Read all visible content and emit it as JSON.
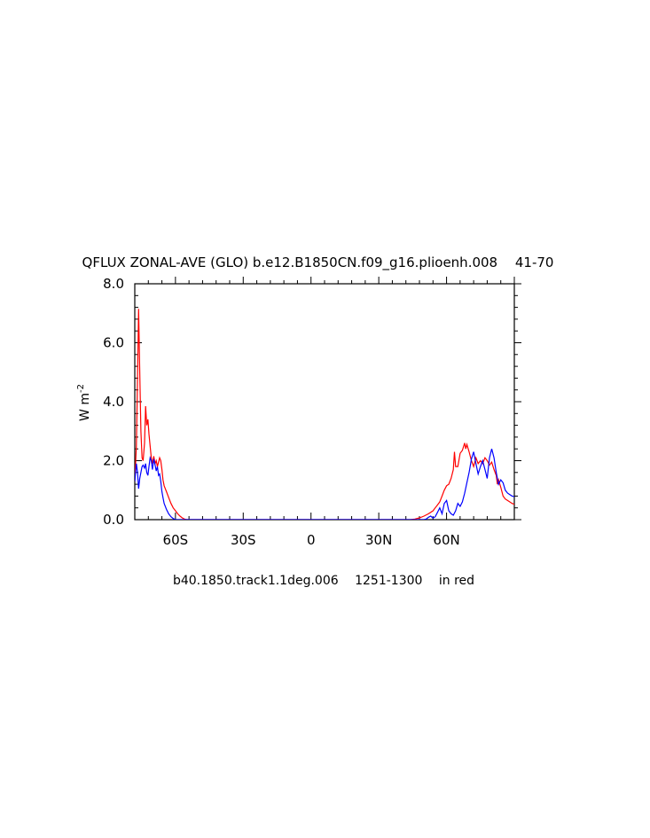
{
  "chart_data": {
    "type": "line",
    "title": "QFLUX ZONAL-AVE (GLO) b.e12.B1850CN.f09_g16.plioenh.008 　41-70　",
    "subtitle": "b40.1850.track1.1deg.006 　1251-1300　 in red",
    "ylabel_base": "W m",
    "ylabel_exp": "-2",
    "xlim": [
      -78,
      90
    ],
    "ylim": [
      0,
      8
    ],
    "x_ticks": [
      {
        "value": -60,
        "label": "60S"
      },
      {
        "value": -30,
        "label": "30S"
      },
      {
        "value": 0,
        "label": "0"
      },
      {
        "value": 30,
        "label": "30N"
      },
      {
        "value": 60,
        "label": "60N"
      }
    ],
    "y_ticks": [
      {
        "value": 0,
        "label": "0.0"
      },
      {
        "value": 2,
        "label": "2.0"
      },
      {
        "value": 4,
        "label": "4.0"
      },
      {
        "value": 6,
        "label": "6.0"
      },
      {
        "value": 8,
        "label": "8.0"
      }
    ],
    "series": [
      {
        "color": "#ff0000",
        "points": [
          [
            -78,
            1.3
          ],
          [
            -77.3,
            2.5
          ],
          [
            -76.8,
            4.8
          ],
          [
            -76.3,
            7.15
          ],
          [
            -75.8,
            5.0
          ],
          [
            -75.3,
            3.0
          ],
          [
            -74.8,
            2.1
          ],
          [
            -74.3,
            2.0
          ],
          [
            -73.7,
            2.6
          ],
          [
            -73.2,
            3.85
          ],
          [
            -72.7,
            3.2
          ],
          [
            -72.2,
            3.4
          ],
          [
            -71.7,
            2.9
          ],
          [
            -71.2,
            2.5
          ],
          [
            -70.7,
            2.1
          ],
          [
            -70.2,
            1.9
          ],
          [
            -69.6,
            2.15
          ],
          [
            -69.0,
            1.9
          ],
          [
            -68.5,
            2.0
          ],
          [
            -68.0,
            1.8
          ],
          [
            -67.5,
            1.95
          ],
          [
            -67.0,
            2.1
          ],
          [
            -66.5,
            2.0
          ],
          [
            -66.0,
            1.7
          ],
          [
            -65.5,
            1.35
          ],
          [
            -65.0,
            1.15
          ],
          [
            -64.0,
            0.95
          ],
          [
            -63.0,
            0.75
          ],
          [
            -62.0,
            0.55
          ],
          [
            -61.0,
            0.4
          ],
          [
            -60.0,
            0.3
          ],
          [
            -59.0,
            0.2
          ],
          [
            -58.0,
            0.12
          ],
          [
            -57.0,
            0.06
          ],
          [
            -56.0,
            0.02
          ],
          [
            -55.0,
            0.0
          ],
          [
            -50,
            0.0
          ],
          [
            0,
            0.0
          ],
          [
            44,
            0.0
          ],
          [
            46,
            0.02
          ],
          [
            48,
            0.06
          ],
          [
            50,
            0.12
          ],
          [
            52,
            0.2
          ],
          [
            54,
            0.3
          ],
          [
            55,
            0.4
          ],
          [
            56,
            0.5
          ],
          [
            57,
            0.6
          ],
          [
            58,
            0.8
          ],
          [
            59,
            1.0
          ],
          [
            60,
            1.15
          ],
          [
            61,
            1.2
          ],
          [
            62,
            1.4
          ],
          [
            63,
            1.7
          ],
          [
            63.5,
            2.3
          ],
          [
            64,
            1.8
          ],
          [
            65,
            1.8
          ],
          [
            66,
            2.25
          ],
          [
            67,
            2.35
          ],
          [
            68,
            2.6
          ],
          [
            68.5,
            2.4
          ],
          [
            69,
            2.55
          ],
          [
            70,
            2.3
          ],
          [
            71,
            2.0
          ],
          [
            72,
            1.8
          ],
          [
            73,
            2.1
          ],
          [
            74,
            1.9
          ],
          [
            75,
            2.0
          ],
          [
            76,
            1.9
          ],
          [
            77,
            2.1
          ],
          [
            78,
            2.0
          ],
          [
            79,
            1.85
          ],
          [
            80,
            1.95
          ],
          [
            81,
            1.7
          ],
          [
            82,
            1.5
          ],
          [
            82.5,
            1.2
          ],
          [
            83,
            1.35
          ],
          [
            84,
            1.1
          ],
          [
            85,
            0.8
          ],
          [
            86,
            0.7
          ],
          [
            87,
            0.65
          ],
          [
            88,
            0.6
          ],
          [
            89,
            0.55
          ],
          [
            90,
            0.52
          ]
        ]
      },
      {
        "color": "#0000ff",
        "points": [
          [
            -78,
            1.3
          ],
          [
            -77.3,
            1.9
          ],
          [
            -76.8,
            1.6
          ],
          [
            -76.3,
            1.05
          ],
          [
            -75.8,
            1.4
          ],
          [
            -75.3,
            1.6
          ],
          [
            -74.8,
            1.8
          ],
          [
            -74.3,
            1.85
          ],
          [
            -73.7,
            1.75
          ],
          [
            -73.2,
            1.9
          ],
          [
            -72.7,
            1.6
          ],
          [
            -72.2,
            1.5
          ],
          [
            -71.7,
            1.8
          ],
          [
            -71.2,
            2.1
          ],
          [
            -70.7,
            2.0
          ],
          [
            -70.2,
            1.7
          ],
          [
            -69.6,
            2.05
          ],
          [
            -69.0,
            1.85
          ],
          [
            -68.5,
            1.65
          ],
          [
            -68.0,
            1.8
          ],
          [
            -67.5,
            1.5
          ],
          [
            -67.0,
            1.55
          ],
          [
            -66.5,
            1.3
          ],
          [
            -66.0,
            0.95
          ],
          [
            -65.5,
            0.75
          ],
          [
            -65.0,
            0.55
          ],
          [
            -64.0,
            0.35
          ],
          [
            -63.0,
            0.2
          ],
          [
            -62.0,
            0.1
          ],
          [
            -61.0,
            0.04
          ],
          [
            -60.0,
            0.0
          ],
          [
            0,
            0.0
          ],
          [
            50,
            0.0
          ],
          [
            51,
            0.02
          ],
          [
            52,
            0.08
          ],
          [
            53,
            0.12
          ],
          [
            54,
            0.05
          ],
          [
            55,
            0.1
          ],
          [
            56,
            0.25
          ],
          [
            57,
            0.4
          ],
          [
            58,
            0.2
          ],
          [
            59,
            0.55
          ],
          [
            60,
            0.65
          ],
          [
            61,
            0.3
          ],
          [
            62,
            0.2
          ],
          [
            63,
            0.15
          ],
          [
            64,
            0.3
          ],
          [
            65,
            0.55
          ],
          [
            66,
            0.45
          ],
          [
            67,
            0.6
          ],
          [
            68,
            0.9
          ],
          [
            69,
            1.25
          ],
          [
            70,
            1.6
          ],
          [
            71,
            2.05
          ],
          [
            72,
            2.3
          ],
          [
            73,
            1.9
          ],
          [
            74,
            1.55
          ],
          [
            75,
            1.8
          ],
          [
            76,
            2.0
          ],
          [
            77,
            1.7
          ],
          [
            78,
            1.4
          ],
          [
            79,
            2.1
          ],
          [
            80,
            2.4
          ],
          [
            81,
            2.1
          ],
          [
            82,
            1.6
          ],
          [
            83,
            1.2
          ],
          [
            84,
            1.35
          ],
          [
            85,
            1.25
          ],
          [
            86,
            1.0
          ],
          [
            87,
            0.9
          ],
          [
            88,
            0.85
          ],
          [
            89,
            0.8
          ],
          [
            90,
            0.78
          ]
        ]
      }
    ]
  }
}
